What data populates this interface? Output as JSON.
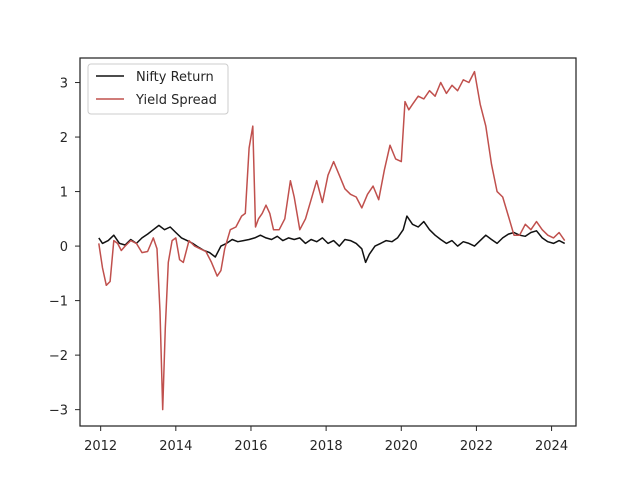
{
  "chart_data": {
    "type": "line",
    "title": "",
    "xlabel": "",
    "ylabel": "",
    "xlim": [
      2011.45,
      2024.65
    ],
    "ylim": [
      -3.3,
      3.45
    ],
    "xticks": [
      2012,
      2014,
      2016,
      2018,
      2020,
      2022,
      2024
    ],
    "xtick_labels": [
      "2012",
      "2014",
      "2016",
      "2018",
      "2020",
      "2022",
      "2024"
    ],
    "yticks": [
      3,
      2,
      1,
      0,
      -1,
      -2,
      -3
    ],
    "ytick_labels": [
      "3",
      "2",
      "1",
      "0",
      "−1",
      "−2",
      "−3"
    ],
    "grid": false,
    "legend_position": "top-left",
    "series": [
      {
        "name": "Nifty Return",
        "color": "#111111",
        "x": [
          2011.95,
          2012.05,
          2012.2,
          2012.35,
          2012.5,
          2012.65,
          2012.8,
          2012.95,
          2013.1,
          2013.25,
          2013.4,
          2013.55,
          2013.7,
          2013.85,
          2014.0,
          2014.15,
          2014.3,
          2014.45,
          2014.6,
          2014.75,
          2014.9,
          2015.05,
          2015.2,
          2015.35,
          2015.5,
          2015.65,
          2015.8,
          2015.95,
          2016.1,
          2016.25,
          2016.4,
          2016.55,
          2016.7,
          2016.85,
          2017.0,
          2017.15,
          2017.3,
          2017.45,
          2017.6,
          2017.75,
          2017.9,
          2018.05,
          2018.2,
          2018.35,
          2018.5,
          2018.65,
          2018.8,
          2018.95,
          2019.05,
          2019.15,
          2019.3,
          2019.45,
          2019.6,
          2019.75,
          2019.9,
          2020.05,
          2020.15,
          2020.3,
          2020.45,
          2020.6,
          2020.75,
          2020.9,
          2021.05,
          2021.2,
          2021.35,
          2021.5,
          2021.65,
          2021.8,
          2021.95,
          2022.1,
          2022.25,
          2022.4,
          2022.55,
          2022.7,
          2022.85,
          2023.0,
          2023.15,
          2023.3,
          2023.45,
          2023.6,
          2023.75,
          2023.9,
          2024.05,
          2024.2,
          2024.35
        ],
        "y": [
          0.15,
          0.05,
          0.1,
          0.2,
          0.05,
          0.02,
          0.12,
          0.05,
          0.15,
          0.22,
          0.3,
          0.38,
          0.3,
          0.35,
          0.25,
          0.15,
          0.1,
          0.05,
          -0.02,
          -0.08,
          -0.12,
          -0.2,
          0.0,
          0.05,
          0.12,
          0.08,
          0.1,
          0.12,
          0.15,
          0.2,
          0.15,
          0.12,
          0.18,
          0.1,
          0.15,
          0.12,
          0.15,
          0.05,
          0.12,
          0.08,
          0.15,
          0.05,
          0.1,
          0.0,
          0.12,
          0.1,
          0.05,
          -0.05,
          -0.3,
          -0.15,
          0.0,
          0.05,
          0.1,
          0.08,
          0.15,
          0.3,
          0.55,
          0.4,
          0.35,
          0.45,
          0.3,
          0.2,
          0.12,
          0.05,
          0.1,
          0.0,
          0.08,
          0.05,
          0.0,
          0.1,
          0.2,
          0.12,
          0.05,
          0.15,
          0.22,
          0.25,
          0.2,
          0.18,
          0.25,
          0.28,
          0.15,
          0.08,
          0.05,
          0.1,
          0.05
        ]
      },
      {
        "name": "Yield Spread",
        "color": "#c0504d",
        "x": [
          2011.95,
          2012.05,
          2012.15,
          2012.25,
          2012.35,
          2012.45,
          2012.55,
          2012.65,
          2012.8,
          2012.95,
          2013.1,
          2013.25,
          2013.4,
          2013.5,
          2013.58,
          2013.65,
          2013.72,
          2013.8,
          2013.9,
          2014.0,
          2014.1,
          2014.2,
          2014.35,
          2014.5,
          2014.65,
          2014.8,
          2014.95,
          2015.1,
          2015.2,
          2015.3,
          2015.45,
          2015.6,
          2015.75,
          2015.85,
          2015.95,
          2016.05,
          2016.12,
          2016.2,
          2016.3,
          2016.4,
          2016.5,
          2016.6,
          2016.75,
          2016.9,
          2017.05,
          2017.15,
          2017.3,
          2017.45,
          2017.6,
          2017.75,
          2017.9,
          2018.05,
          2018.2,
          2018.35,
          2018.5,
          2018.65,
          2018.8,
          2018.95,
          2019.1,
          2019.25,
          2019.4,
          2019.55,
          2019.7,
          2019.85,
          2020.0,
          2020.1,
          2020.2,
          2020.3,
          2020.45,
          2020.6,
          2020.75,
          2020.9,
          2021.05,
          2021.2,
          2021.35,
          2021.5,
          2021.65,
          2021.8,
          2021.95,
          2022.1,
          2022.25,
          2022.4,
          2022.55,
          2022.7,
          2022.85,
          2023.0,
          2023.15,
          2023.3,
          2023.45,
          2023.6,
          2023.75,
          2023.9,
          2024.05,
          2024.2,
          2024.35
        ],
        "y": [
          0.05,
          -0.4,
          -0.72,
          -0.65,
          0.1,
          0.05,
          -0.08,
          0.0,
          0.1,
          0.05,
          -0.12,
          -0.1,
          0.15,
          -0.05,
          -1.2,
          -3.0,
          -1.5,
          -0.3,
          0.1,
          0.15,
          -0.25,
          -0.3,
          0.1,
          0.0,
          -0.05,
          -0.1,
          -0.3,
          -0.55,
          -0.45,
          -0.05,
          0.3,
          0.35,
          0.55,
          0.6,
          1.8,
          2.2,
          0.35,
          0.5,
          0.6,
          0.75,
          0.6,
          0.3,
          0.3,
          0.5,
          1.2,
          0.9,
          0.3,
          0.5,
          0.85,
          1.2,
          0.8,
          1.3,
          1.55,
          1.3,
          1.05,
          0.95,
          0.9,
          0.7,
          0.95,
          1.1,
          0.85,
          1.4,
          1.85,
          1.6,
          1.55,
          2.65,
          2.5,
          2.6,
          2.75,
          2.7,
          2.85,
          2.75,
          3.0,
          2.8,
          2.95,
          2.85,
          3.05,
          3.0,
          3.2,
          2.6,
          2.2,
          1.5,
          1.0,
          0.9,
          0.55,
          0.2,
          0.2,
          0.4,
          0.3,
          0.45,
          0.3,
          0.2,
          0.15,
          0.25,
          0.1
        ]
      }
    ]
  }
}
